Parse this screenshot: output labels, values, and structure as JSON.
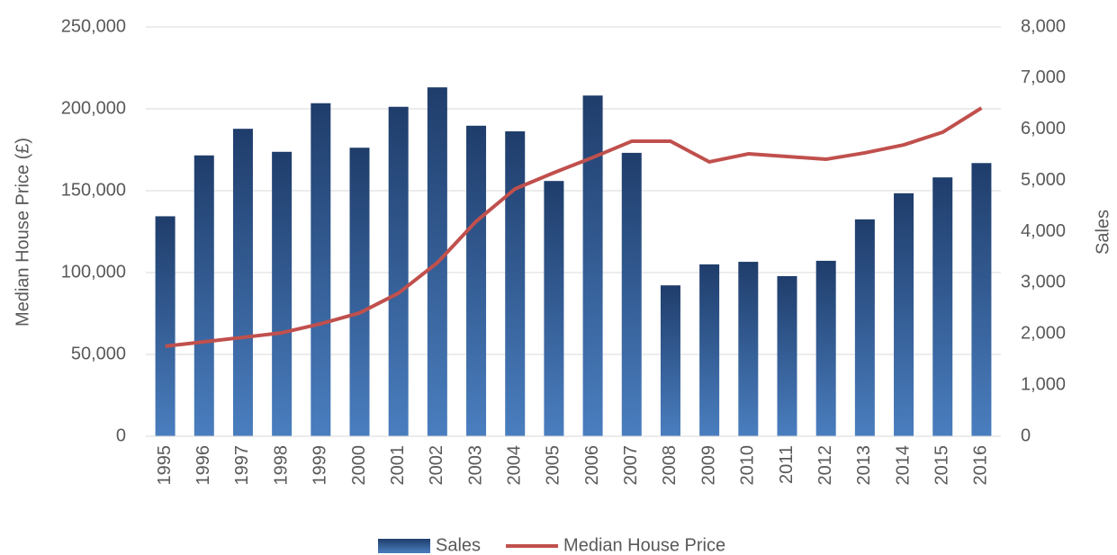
{
  "chart_data": {
    "type": "combo",
    "y_label": "Median House Price (£)",
    "y2_label": "Sales",
    "categories": [
      "1995",
      "1996",
      "1997",
      "1998",
      "1999",
      "2000",
      "2001",
      "2002",
      "2003",
      "2004",
      "2005",
      "2006",
      "2007",
      "2008",
      "2009",
      "2010",
      "2011",
      "2012",
      "2013",
      "2014",
      "2015",
      "2016"
    ],
    "series": [
      {
        "name": "Sales",
        "type": "bar",
        "axis": "y2",
        "color": "#4a7ebf",
        "values": [
          4300,
          5490,
          6010,
          5560,
          6510,
          5640,
          6440,
          6820,
          6070,
          5960,
          4990,
          6660,
          5540,
          2950,
          3360,
          3410,
          3130,
          3430,
          4240,
          4750,
          5060,
          5340
        ]
      },
      {
        "name": "Median House Price",
        "type": "line",
        "color": "#c0504d",
        "values": [
          55000,
          57700,
          60400,
          63200,
          68700,
          75300,
          87400,
          106000,
          131300,
          151100,
          161000,
          170300,
          180200,
          180200,
          167600,
          172500,
          170900,
          169200,
          173100,
          178000,
          185700,
          200500
        ]
      }
    ],
    "ylim": [
      0,
      250000
    ],
    "yticks": [
      0,
      {
        "value": 50000,
        "label": "50,000"
      },
      {
        "value": 100000,
        "label": "100,000"
      },
      {
        "value": 150000,
        "label": "150,000"
      },
      {
        "value": 200000,
        "label": "200,000"
      },
      {
        "value": 250000,
        "label": "250,000"
      }
    ],
    "y2lim": [
      0,
      8000
    ],
    "y2ticks": [
      0,
      {
        "value": 1000,
        "label": "1,000"
      },
      {
        "value": 2000,
        "label": "2,000"
      },
      {
        "value": 3000,
        "label": "3,000"
      },
      {
        "value": 4000,
        "label": "4,000"
      },
      {
        "value": 5000,
        "label": "5,000"
      },
      {
        "value": 6000,
        "label": "6,000"
      },
      {
        "value": 7000,
        "label": "7,000"
      },
      {
        "value": 8000,
        "label": "8,000"
      }
    ],
    "grid": true,
    "legend": "bottom"
  }
}
